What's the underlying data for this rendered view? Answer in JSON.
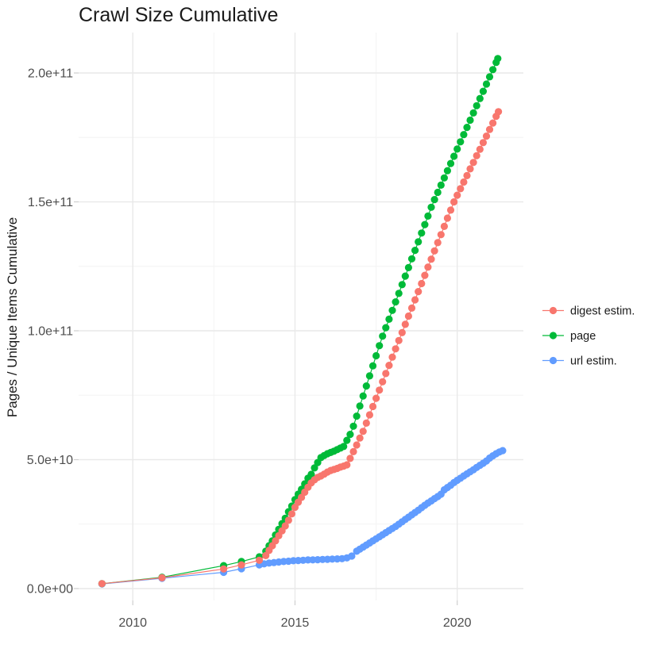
{
  "title": "Crawl Size Cumulative",
  "chart_data": {
    "type": "line",
    "title": "Crawl Size Cumulative",
    "xlabel": "",
    "ylabel": "Pages / Unique Items Cumulative",
    "value_unit": "points are [year, value in 1e9]; y axis rendered in scientific notation",
    "x_range": [
      2008.5,
      2021.9
    ],
    "y_range_e9": [
      0,
      212
    ],
    "grid": true,
    "legend_position": "right",
    "axis": {
      "x_ticks": [
        2010,
        2015,
        2020
      ],
      "x_tick_labels": [
        "2010",
        "2015",
        "2020"
      ],
      "x_minor": [
        2012.5,
        2017.5
      ],
      "y_ticks_e9": [
        0,
        50,
        100,
        150,
        200
      ],
      "y_tick_labels": [
        "0.0e+00",
        "5.0e+10",
        "1.0e+11",
        "1.5e+11",
        "2.0e+11"
      ],
      "y_minor_e9": [
        25,
        75,
        125,
        175
      ]
    },
    "draw_order": [
      "url estim.",
      "page",
      "digest estim."
    ],
    "series": [
      {
        "name": "digest estim.",
        "key": "digest-estim",
        "color": "#F8766D",
        "points": [
          [
            2009.05,
            1.9
          ],
          [
            2010.9,
            4.2
          ],
          [
            2012.8,
            7.6
          ],
          [
            2013.35,
            9.2
          ],
          [
            2013.9,
            11.0
          ],
          [
            2014.1,
            12.8
          ],
          [
            2014.2,
            14.8
          ],
          [
            2014.3,
            16.6
          ],
          [
            2014.4,
            18.5
          ],
          [
            2014.5,
            20.5
          ],
          [
            2014.6,
            22.4
          ],
          [
            2014.7,
            24.3
          ],
          [
            2014.8,
            26.5
          ],
          [
            2014.9,
            29.0
          ],
          [
            2015.0,
            31.5
          ],
          [
            2015.1,
            33.5
          ],
          [
            2015.2,
            35.4
          ],
          [
            2015.3,
            37.4
          ],
          [
            2015.4,
            39.3
          ],
          [
            2015.5,
            41.0
          ],
          [
            2015.6,
            42.2
          ],
          [
            2015.7,
            43.1
          ],
          [
            2015.8,
            43.7
          ],
          [
            2015.9,
            44.4
          ],
          [
            2016.0,
            45.2
          ],
          [
            2016.1,
            45.8
          ],
          [
            2016.2,
            46.2
          ],
          [
            2016.3,
            46.6
          ],
          [
            2016.4,
            47.1
          ],
          [
            2016.5,
            47.5
          ],
          [
            2016.6,
            48.0
          ],
          [
            2016.7,
            50.5
          ],
          [
            2016.8,
            53.1
          ],
          [
            2016.9,
            55.7
          ],
          [
            2017.0,
            58.4
          ],
          [
            2017.1,
            61.0
          ],
          [
            2017.2,
            64.2
          ],
          [
            2017.3,
            67.4
          ],
          [
            2017.4,
            70.6
          ],
          [
            2017.5,
            73.8
          ],
          [
            2017.6,
            77.0
          ],
          [
            2017.7,
            80.2
          ],
          [
            2017.8,
            83.4
          ],
          [
            2017.9,
            86.6
          ],
          [
            2018.0,
            89.8
          ],
          [
            2018.1,
            93.0
          ],
          [
            2018.2,
            96.2
          ],
          [
            2018.3,
            99.3
          ],
          [
            2018.4,
            102.5
          ],
          [
            2018.5,
            105.7
          ],
          [
            2018.6,
            108.8
          ],
          [
            2018.7,
            112.0
          ],
          [
            2018.8,
            115.2
          ],
          [
            2018.9,
            118.3
          ],
          [
            2019.0,
            121.5
          ],
          [
            2019.1,
            124.7
          ],
          [
            2019.2,
            127.8
          ],
          [
            2019.3,
            131.0
          ],
          [
            2019.4,
            134.2
          ],
          [
            2019.5,
            137.3
          ],
          [
            2019.6,
            140.5
          ],
          [
            2019.7,
            143.7
          ],
          [
            2019.8,
            146.8
          ],
          [
            2019.9,
            150.0
          ],
          [
            2020.0,
            152.6
          ],
          [
            2020.1,
            155.1
          ],
          [
            2020.2,
            157.7
          ],
          [
            2020.3,
            160.2
          ],
          [
            2020.4,
            162.8
          ],
          [
            2020.5,
            165.3
          ],
          [
            2020.6,
            167.9
          ],
          [
            2020.7,
            170.4
          ],
          [
            2020.8,
            173.0
          ],
          [
            2020.9,
            175.5
          ],
          [
            2021.0,
            178.1
          ],
          [
            2021.1,
            180.6
          ],
          [
            2021.2,
            183.2
          ],
          [
            2021.27,
            185.0
          ]
        ]
      },
      {
        "name": "page",
        "key": "page",
        "color": "#00BA38",
        "points": [
          [
            2009.05,
            1.9
          ],
          [
            2010.9,
            4.4
          ],
          [
            2012.8,
            8.9
          ],
          [
            2013.35,
            10.5
          ],
          [
            2013.9,
            12.3
          ],
          [
            2014.1,
            14.5
          ],
          [
            2014.2,
            16.6
          ],
          [
            2014.3,
            18.5
          ],
          [
            2014.4,
            20.8
          ],
          [
            2014.5,
            23.0
          ],
          [
            2014.6,
            25.2
          ],
          [
            2014.7,
            27.3
          ],
          [
            2014.8,
            29.8
          ],
          [
            2014.9,
            32.0
          ],
          [
            2015.0,
            34.5
          ],
          [
            2015.1,
            36.6
          ],
          [
            2015.2,
            38.5
          ],
          [
            2015.3,
            40.6
          ],
          [
            2015.4,
            42.8
          ],
          [
            2015.5,
            44.3
          ],
          [
            2015.6,
            46.8
          ],
          [
            2015.7,
            48.9
          ],
          [
            2015.8,
            50.8
          ],
          [
            2015.9,
            51.6
          ],
          [
            2016.0,
            52.3
          ],
          [
            2016.1,
            52.8
          ],
          [
            2016.2,
            53.3
          ],
          [
            2016.3,
            53.9
          ],
          [
            2016.4,
            54.5
          ],
          [
            2016.5,
            55.1
          ],
          [
            2016.6,
            57.5
          ],
          [
            2016.7,
            59.8
          ],
          [
            2016.8,
            63.0
          ],
          [
            2016.9,
            66.9
          ],
          [
            2017.0,
            70.8
          ],
          [
            2017.1,
            74.7
          ],
          [
            2017.2,
            78.6
          ],
          [
            2017.3,
            82.5
          ],
          [
            2017.4,
            86.4
          ],
          [
            2017.5,
            90.3
          ],
          [
            2017.6,
            94.2
          ],
          [
            2017.7,
            97.9
          ],
          [
            2017.8,
            101.2
          ],
          [
            2017.9,
            104.5
          ],
          [
            2018.0,
            107.9
          ],
          [
            2018.1,
            111.2
          ],
          [
            2018.2,
            114.5
          ],
          [
            2018.3,
            117.9
          ],
          [
            2018.4,
            121.2
          ],
          [
            2018.5,
            124.5
          ],
          [
            2018.6,
            127.9
          ],
          [
            2018.7,
            131.2
          ],
          [
            2018.8,
            134.5
          ],
          [
            2018.9,
            137.9
          ],
          [
            2019.0,
            141.2
          ],
          [
            2019.1,
            144.5
          ],
          [
            2019.2,
            147.9
          ],
          [
            2019.3,
            150.9
          ],
          [
            2019.4,
            153.7
          ],
          [
            2019.5,
            156.5
          ],
          [
            2019.6,
            159.3
          ],
          [
            2019.7,
            162.1
          ],
          [
            2019.8,
            164.9
          ],
          [
            2019.9,
            167.7
          ],
          [
            2020.0,
            170.5
          ],
          [
            2020.1,
            173.3
          ],
          [
            2020.2,
            176.1
          ],
          [
            2020.3,
            178.9
          ],
          [
            2020.4,
            181.7
          ],
          [
            2020.5,
            184.5
          ],
          [
            2020.6,
            187.3
          ],
          [
            2020.7,
            190.1
          ],
          [
            2020.8,
            192.9
          ],
          [
            2020.9,
            195.7
          ],
          [
            2021.0,
            198.5
          ],
          [
            2021.1,
            201.3
          ],
          [
            2021.2,
            204.1
          ],
          [
            2021.25,
            205.6
          ]
        ]
      },
      {
        "name": "url estim.",
        "key": "url-estim",
        "color": "#619CFF",
        "points": [
          [
            2009.05,
            1.8
          ],
          [
            2010.9,
            4.0
          ],
          [
            2012.8,
            6.3
          ],
          [
            2013.35,
            7.7
          ],
          [
            2013.9,
            9.2
          ],
          [
            2014.05,
            9.6
          ],
          [
            2014.2,
            9.9
          ],
          [
            2014.35,
            10.1
          ],
          [
            2014.5,
            10.3
          ],
          [
            2014.65,
            10.5
          ],
          [
            2014.8,
            10.6
          ],
          [
            2014.95,
            10.8
          ],
          [
            2015.1,
            10.9
          ],
          [
            2015.25,
            11.0
          ],
          [
            2015.4,
            11.1
          ],
          [
            2015.55,
            11.15
          ],
          [
            2015.7,
            11.2
          ],
          [
            2015.85,
            11.3
          ],
          [
            2016.0,
            11.35
          ],
          [
            2016.15,
            11.45
          ],
          [
            2016.3,
            11.5
          ],
          [
            2016.45,
            11.6
          ],
          [
            2016.6,
            11.9
          ],
          [
            2016.75,
            12.6
          ],
          [
            2016.9,
            14.5
          ],
          [
            2017.0,
            15.3
          ],
          [
            2017.1,
            16.1
          ],
          [
            2017.2,
            16.9
          ],
          [
            2017.3,
            17.7
          ],
          [
            2017.4,
            18.5
          ],
          [
            2017.5,
            19.3
          ],
          [
            2017.6,
            20.1
          ],
          [
            2017.7,
            20.9
          ],
          [
            2017.8,
            21.7
          ],
          [
            2017.9,
            22.5
          ],
          [
            2018.0,
            23.3
          ],
          [
            2018.1,
            24.1
          ],
          [
            2018.2,
            25.0
          ],
          [
            2018.3,
            25.9
          ],
          [
            2018.4,
            26.8
          ],
          [
            2018.5,
            27.7
          ],
          [
            2018.6,
            28.6
          ],
          [
            2018.7,
            29.5
          ],
          [
            2018.8,
            30.4
          ],
          [
            2018.9,
            31.4
          ],
          [
            2019.0,
            32.3
          ],
          [
            2019.1,
            33.2
          ],
          [
            2019.2,
            34.0
          ],
          [
            2019.3,
            34.9
          ],
          [
            2019.4,
            35.7
          ],
          [
            2019.5,
            36.6
          ],
          [
            2019.6,
            38.3
          ],
          [
            2019.7,
            39.2
          ],
          [
            2019.8,
            40.1
          ],
          [
            2019.9,
            41.1
          ],
          [
            2020.0,
            42.0
          ],
          [
            2020.1,
            42.8
          ],
          [
            2020.2,
            43.7
          ],
          [
            2020.3,
            44.5
          ],
          [
            2020.4,
            45.3
          ],
          [
            2020.5,
            46.1
          ],
          [
            2020.6,
            47.0
          ],
          [
            2020.7,
            47.8
          ],
          [
            2020.8,
            48.6
          ],
          [
            2020.9,
            49.5
          ],
          [
            2021.0,
            50.6
          ],
          [
            2021.1,
            51.5
          ],
          [
            2021.2,
            52.3
          ],
          [
            2021.3,
            53.0
          ],
          [
            2021.4,
            53.5
          ]
        ]
      }
    ]
  }
}
